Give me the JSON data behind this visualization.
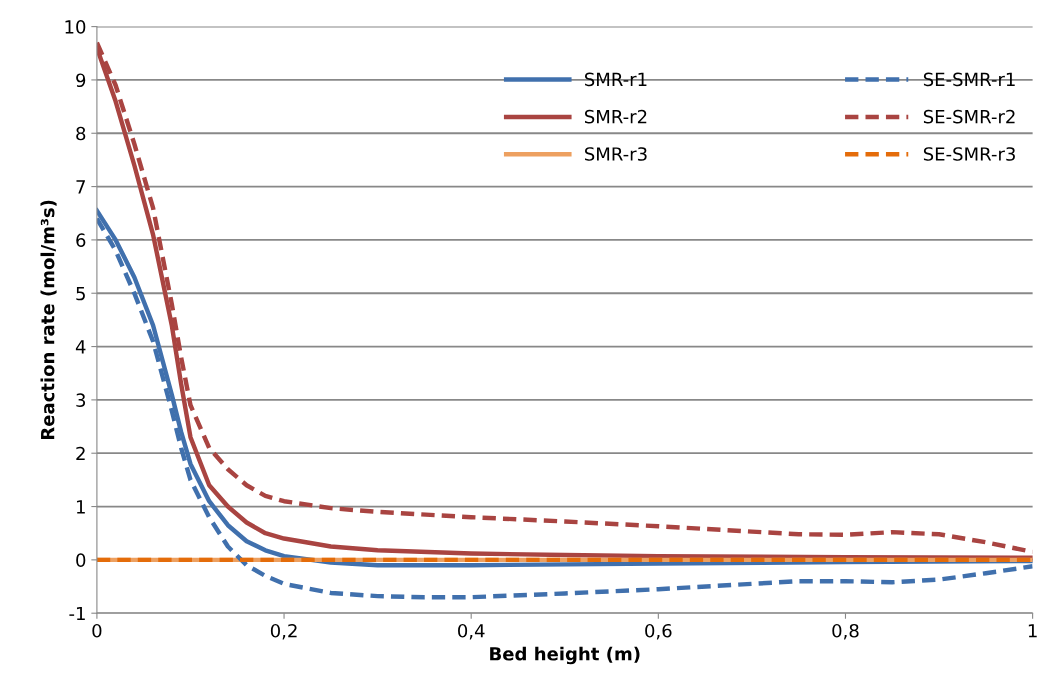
{
  "chart_data": {
    "type": "line",
    "xlabel": "Bed height (m)",
    "ylabel": "Reaction rate (mol/m³s)",
    "xlim": [
      0,
      1
    ],
    "ylim": [
      -1,
      10
    ],
    "xticks": [
      0,
      {
        "value": 0.2,
        "label": "0,2"
      },
      {
        "value": 0.4,
        "label": "0,4"
      },
      {
        "value": 0.6,
        "label": "0,6"
      },
      {
        "value": 0.8,
        "label": "0,8"
      },
      1
    ],
    "yticks": [
      -1,
      0,
      1,
      2,
      3,
      4,
      5,
      6,
      7,
      8,
      9,
      10
    ],
    "grid": "y",
    "legend": "top right",
    "marker": "none",
    "series": [
      {
        "name": "SMR-r1",
        "color": "#4070ad",
        "line_style": "solid",
        "x": [
          0,
          0.02,
          0.04,
          0.06,
          0.08,
          0.09,
          0.1,
          0.12,
          0.14,
          0.16,
          0.18,
          0.2,
          0.25,
          0.3,
          0.4,
          0.6,
          0.8,
          1
        ],
        "values": [
          6.55,
          6.0,
          5.3,
          4.4,
          3.1,
          2.4,
          1.8,
          1.1,
          0.65,
          0.35,
          0.18,
          0.07,
          -0.05,
          -0.1,
          -0.1,
          -0.07,
          -0.04,
          -0.02
        ]
      },
      {
        "name": "SMR-r2",
        "color": "#a94441",
        "line_style": "solid",
        "x": [
          0,
          0.02,
          0.04,
          0.06,
          0.08,
          0.09,
          0.1,
          0.12,
          0.14,
          0.16,
          0.18,
          0.2,
          0.25,
          0.3,
          0.4,
          0.5,
          0.6,
          0.8,
          1
        ],
        "values": [
          9.6,
          8.6,
          7.4,
          6.1,
          4.4,
          3.3,
          2.3,
          1.4,
          1.0,
          0.7,
          0.5,
          0.4,
          0.25,
          0.18,
          0.12,
          0.09,
          0.07,
          0.05,
          0.04
        ]
      },
      {
        "name": "SMR-r3",
        "color": "#eda060",
        "line_style": "solid",
        "x": [
          0,
          1
        ],
        "values": [
          0,
          0
        ]
      },
      {
        "name": "SE-SMR-r1",
        "color": "#4070ad",
        "line_style": "dashed",
        "x": [
          0,
          0.02,
          0.04,
          0.06,
          0.08,
          0.09,
          0.1,
          0.12,
          0.14,
          0.16,
          0.18,
          0.2,
          0.25,
          0.3,
          0.35,
          0.4,
          0.5,
          0.6,
          0.7,
          0.75,
          0.8,
          0.85,
          0.9,
          0.95,
          1
        ],
        "values": [
          6.4,
          5.8,
          5.0,
          4.1,
          2.8,
          2.1,
          1.5,
          0.8,
          0.25,
          -0.1,
          -0.3,
          -0.45,
          -0.62,
          -0.68,
          -0.7,
          -0.7,
          -0.63,
          -0.55,
          -0.45,
          -0.4,
          -0.4,
          -0.42,
          -0.37,
          -0.25,
          -0.12
        ]
      },
      {
        "name": "SE-SMR-r2",
        "color": "#a94441",
        "line_style": "dashed",
        "x": [
          0,
          0.02,
          0.04,
          0.06,
          0.08,
          0.09,
          0.1,
          0.12,
          0.14,
          0.16,
          0.18,
          0.2,
          0.25,
          0.3,
          0.4,
          0.5,
          0.6,
          0.7,
          0.75,
          0.8,
          0.85,
          0.9,
          0.95,
          1
        ],
        "values": [
          9.7,
          8.9,
          7.8,
          6.6,
          4.8,
          3.8,
          2.9,
          2.1,
          1.7,
          1.4,
          1.2,
          1.1,
          0.97,
          0.9,
          0.8,
          0.72,
          0.63,
          0.53,
          0.48,
          0.47,
          0.52,
          0.48,
          0.33,
          0.15
        ]
      },
      {
        "name": "SE-SMR-r3",
        "color": "#e46c0a",
        "line_style": "dashed",
        "x": [
          0,
          1
        ],
        "values": [
          0,
          0
        ]
      }
    ]
  }
}
